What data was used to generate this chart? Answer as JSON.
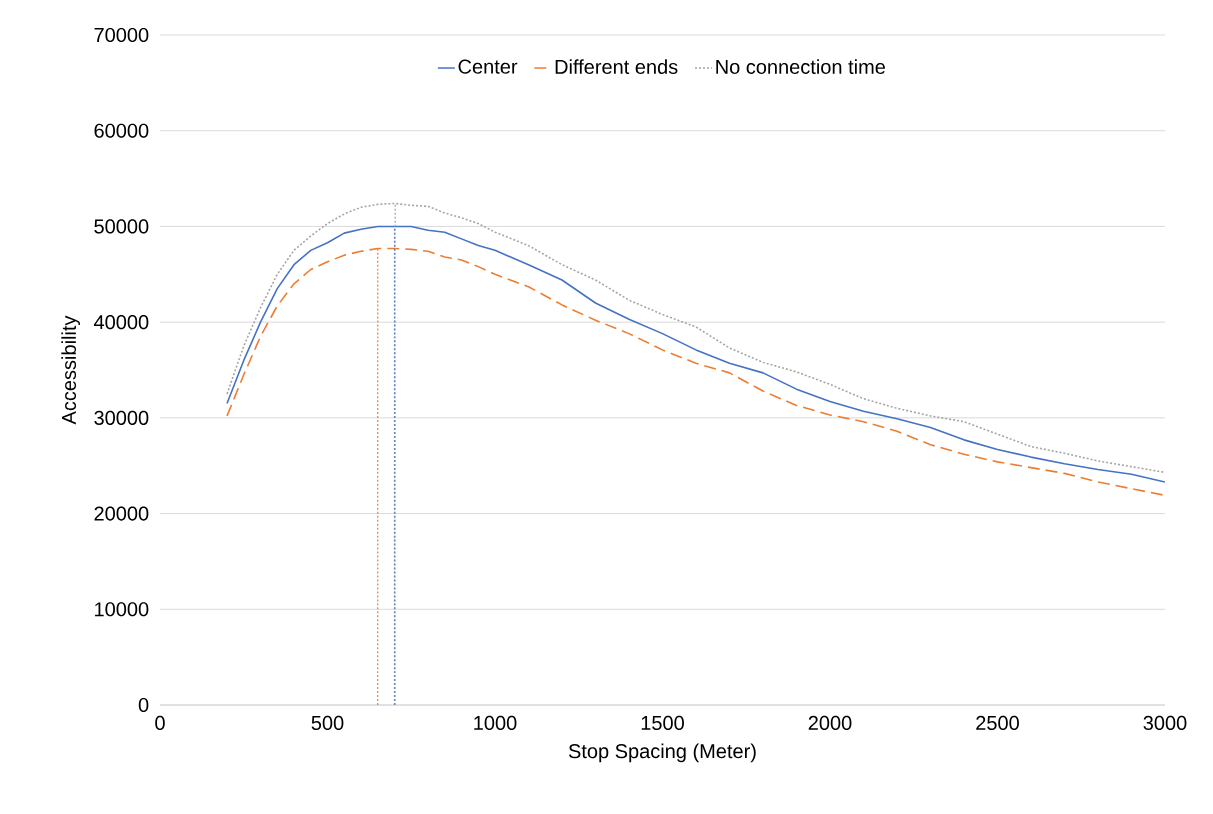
{
  "chart_data": {
    "type": "line",
    "xlabel": "Stop Spacing (Meter)",
    "ylabel": "Accessibility",
    "xlim": [
      0,
      3000
    ],
    "xticks": [
      0,
      500,
      1000,
      1500,
      2000,
      2500,
      3000
    ],
    "ylim": [
      0,
      70000
    ],
    "yticks": [
      0,
      10000,
      20000,
      30000,
      40000,
      50000,
      60000,
      70000
    ],
    "grid": "y",
    "legend": "top",
    "series": [
      {
        "name": "Center",
        "color": "#4472c4",
        "line_style": "solid",
        "x": [
          200,
          250,
          300,
          350,
          400,
          450,
          500,
          550,
          600,
          650,
          700,
          750,
          800,
          850,
          900,
          950,
          1000,
          1100,
          1200,
          1300,
          1400,
          1500,
          1600,
          1700,
          1800,
          1900,
          2000,
          2100,
          2200,
          2300,
          2400,
          2500,
          2600,
          2700,
          2800,
          2900,
          3000
        ],
        "values": [
          31500,
          36000,
          40000,
          43500,
          46000,
          47500,
          48300,
          49300,
          49700,
          50000,
          50000,
          50000,
          49600,
          49400,
          48700,
          48000,
          47500,
          46000,
          44400,
          42000,
          40300,
          38800,
          37100,
          35700,
          34700,
          33000,
          31700,
          30700,
          29900,
          29000,
          27700,
          26700,
          25900,
          25200,
          24600,
          24100,
          23300
        ]
      },
      {
        "name": "Different ends",
        "color": "#ed7d31",
        "line_style": "dashed",
        "x": [
          200,
          250,
          300,
          350,
          400,
          450,
          500,
          550,
          600,
          650,
          700,
          750,
          800,
          850,
          900,
          950,
          1000,
          1100,
          1200,
          1300,
          1400,
          1500,
          1600,
          1700,
          1800,
          1900,
          2000,
          2100,
          2200,
          2300,
          2400,
          2500,
          2600,
          2700,
          2800,
          2900,
          3000
        ],
        "values": [
          30200,
          34500,
          38500,
          41700,
          44000,
          45500,
          46300,
          47000,
          47400,
          47700,
          47700,
          47600,
          47400,
          46800,
          46500,
          45800,
          45000,
          43700,
          41800,
          40200,
          38800,
          37100,
          35700,
          34700,
          32800,
          31300,
          30300,
          29600,
          28600,
          27200,
          26200,
          25400,
          24800,
          24200,
          23300,
          22600,
          21900
        ]
      },
      {
        "name": "No connection time",
        "color": "#a5a5a5",
        "line_style": "dotted",
        "x": [
          200,
          250,
          300,
          350,
          400,
          450,
          500,
          550,
          600,
          650,
          700,
          750,
          800,
          850,
          900,
          950,
          1000,
          1100,
          1200,
          1300,
          1400,
          1500,
          1600,
          1700,
          1800,
          1900,
          2000,
          2100,
          2200,
          2300,
          2400,
          2500,
          2600,
          2700,
          2800,
          2900,
          3000
        ],
        "values": [
          32500,
          37500,
          41500,
          45000,
          47500,
          49000,
          50300,
          51300,
          52000,
          52300,
          52400,
          52200,
          52100,
          51400,
          50900,
          50300,
          49400,
          48000,
          46000,
          44400,
          42300,
          40800,
          39500,
          37300,
          35800,
          34800,
          33500,
          32000,
          31000,
          30200,
          29600,
          28300,
          27000,
          26300,
          25500,
          24900,
          24300
        ]
      },
      {
        "color": "#ed7d31",
        "line_style": "dotted",
        "x": [
          650,
          650
        ],
        "values": [
          0,
          47700
        ]
      },
      {
        "color": "#4472c4",
        "line_style": "dotted",
        "x": [
          700,
          700
        ],
        "values": [
          0,
          50000
        ]
      },
      {
        "color": "#a5a5a5",
        "line_style": "dotted",
        "x": [
          702,
          702
        ],
        "values": [
          0,
          52400
        ]
      }
    ]
  }
}
